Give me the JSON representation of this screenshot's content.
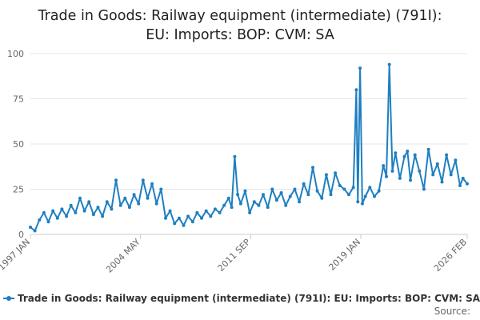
{
  "chart_data": {
    "type": "line",
    "title_line1": "Trade in Goods: Railway equipment (intermediate) (791I):",
    "title_line2": "EU: Imports: BOP: CVM: SA",
    "ylim": [
      0,
      100
    ],
    "yticks": [
      0,
      25,
      50,
      75,
      100
    ],
    "xlim": [
      1997.0,
      2026.08
    ],
    "xticks": [
      {
        "label": "1997 JAN",
        "t": 1997.0
      },
      {
        "label": "2004 MAY",
        "t": 2004.33
      },
      {
        "label": "2011 SEP",
        "t": 2011.67
      },
      {
        "label": "2019 JAN",
        "t": 2019.0
      },
      {
        "label": "2026 FEB",
        "t": 2026.08
      }
    ],
    "series": [
      {
        "name": "Trade in Goods: Railway equipment (intermediate) (791I): EU: Imports: BOP: CVM: SA",
        "color": "#1f7fc0",
        "points": [
          [
            1997.0,
            4
          ],
          [
            1997.3,
            2
          ],
          [
            1997.6,
            8
          ],
          [
            1997.9,
            12
          ],
          [
            1998.2,
            7
          ],
          [
            1998.5,
            13
          ],
          [
            1998.8,
            9
          ],
          [
            1999.1,
            14
          ],
          [
            1999.4,
            10
          ],
          [
            1999.7,
            16
          ],
          [
            2000.0,
            12
          ],
          [
            2000.3,
            20
          ],
          [
            2000.6,
            13
          ],
          [
            2000.9,
            18
          ],
          [
            2001.2,
            11
          ],
          [
            2001.5,
            15
          ],
          [
            2001.8,
            10
          ],
          [
            2002.1,
            18
          ],
          [
            2002.4,
            14
          ],
          [
            2002.7,
            30
          ],
          [
            2003.0,
            16
          ],
          [
            2003.3,
            20
          ],
          [
            2003.6,
            15
          ],
          [
            2003.9,
            22
          ],
          [
            2004.2,
            17
          ],
          [
            2004.5,
            30
          ],
          [
            2004.8,
            20
          ],
          [
            2005.1,
            28
          ],
          [
            2005.4,
            17
          ],
          [
            2005.7,
            25
          ],
          [
            2006.0,
            9
          ],
          [
            2006.3,
            13
          ],
          [
            2006.6,
            6
          ],
          [
            2006.9,
            9
          ],
          [
            2007.2,
            5
          ],
          [
            2007.5,
            10
          ],
          [
            2007.8,
            7
          ],
          [
            2008.1,
            12
          ],
          [
            2008.4,
            9
          ],
          [
            2008.7,
            13
          ],
          [
            2009.0,
            10
          ],
          [
            2009.3,
            14
          ],
          [
            2009.6,
            12
          ],
          [
            2009.9,
            16
          ],
          [
            2010.2,
            20
          ],
          [
            2010.4,
            15
          ],
          [
            2010.6,
            43
          ],
          [
            2010.8,
            22
          ],
          [
            2011.0,
            17
          ],
          [
            2011.3,
            24
          ],
          [
            2011.6,
            12
          ],
          [
            2011.9,
            18
          ],
          [
            2012.2,
            16
          ],
          [
            2012.5,
            22
          ],
          [
            2012.8,
            15
          ],
          [
            2013.1,
            25
          ],
          [
            2013.4,
            19
          ],
          [
            2013.7,
            23
          ],
          [
            2014.0,
            16
          ],
          [
            2014.3,
            21
          ],
          [
            2014.6,
            25
          ],
          [
            2014.9,
            18
          ],
          [
            2015.2,
            28
          ],
          [
            2015.5,
            22
          ],
          [
            2015.8,
            37
          ],
          [
            2016.1,
            24
          ],
          [
            2016.4,
            20
          ],
          [
            2016.7,
            33
          ],
          [
            2017.0,
            22
          ],
          [
            2017.3,
            34
          ],
          [
            2017.6,
            27
          ],
          [
            2017.9,
            25
          ],
          [
            2018.2,
            22
          ],
          [
            2018.5,
            26
          ],
          [
            2018.7,
            80
          ],
          [
            2018.8,
            18
          ],
          [
            2018.95,
            92
          ],
          [
            2019.1,
            17
          ],
          [
            2019.3,
            21
          ],
          [
            2019.6,
            26
          ],
          [
            2019.9,
            21
          ],
          [
            2020.2,
            24
          ],
          [
            2020.5,
            38
          ],
          [
            2020.7,
            32
          ],
          [
            2020.9,
            94
          ],
          [
            2021.1,
            35
          ],
          [
            2021.3,
            45
          ],
          [
            2021.6,
            31
          ],
          [
            2021.9,
            43
          ],
          [
            2022.1,
            46
          ],
          [
            2022.3,
            30
          ],
          [
            2022.6,
            44
          ],
          [
            2022.9,
            35
          ],
          [
            2023.2,
            25
          ],
          [
            2023.5,
            47
          ],
          [
            2023.8,
            33
          ],
          [
            2024.1,
            39
          ],
          [
            2024.4,
            29
          ],
          [
            2024.7,
            44
          ],
          [
            2025.0,
            33
          ],
          [
            2025.3,
            41
          ],
          [
            2025.6,
            27
          ],
          [
            2025.8,
            31
          ],
          [
            2026.08,
            28
          ]
        ]
      }
    ],
    "source_label": "Source:"
  }
}
